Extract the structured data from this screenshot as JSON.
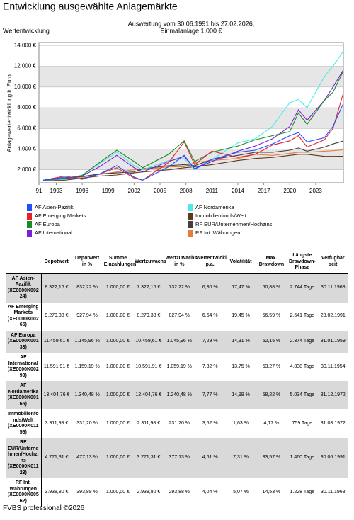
{
  "chart_data": {
    "type": "line",
    "title": "Entwicklung ausgewählte Anlagemärkte",
    "subtitle": [
      "Auswertung vom 30.06.1991 bis 27.02.2026,",
      "Einmalanlage 1.000 €"
    ],
    "panel_label": "Wertentwicklung",
    "y_label": "Anlagewertentwicklung in Euro",
    "x": [
      1991.5,
      1994,
      1996,
      1998,
      2000,
      2002,
      2003,
      2006,
      2007.8,
      2009,
      2011,
      2014,
      2016,
      2018,
      2020,
      2021,
      2022,
      2024,
      2025,
      2026.15
    ],
    "xlim": [
      1991,
      2026.2
    ],
    "xticks": [
      {
        "value": 1991,
        "label": "91"
      },
      1993,
      1996,
      1999,
      2002,
      2005,
      2008,
      2011,
      2014,
      2017,
      2020,
      2023
    ],
    "ylim": [
      750,
      14300
    ],
    "yticks": [
      {
        "value": 2000,
        "label": "2.000 €"
      },
      {
        "value": 4000,
        "label": "4.000 €"
      },
      {
        "value": 6000,
        "label": "6.000 €"
      },
      {
        "value": 8000,
        "label": "8.000 €"
      },
      {
        "value": 10000,
        "label": "10.000 €"
      },
      {
        "value": 12000,
        "label": "12.000 €"
      },
      {
        "value": 14000,
        "label": "14.000 €"
      }
    ],
    "grid": true,
    "series": [
      {
        "name": "AF Asien-Pazifik",
        "color": "#1f4fff",
        "values": [
          1000,
          1300,
          1100,
          1600,
          2400,
          1300,
          1000,
          2300,
          3400,
          2100,
          3000,
          3700,
          3900,
          4500,
          5300,
          5600,
          4700,
          5100,
          6200,
          8322
        ]
      },
      {
        "name": "AF Emerging Markets",
        "color": "#e8202a",
        "values": [
          1000,
          1400,
          1100,
          1600,
          2200,
          1200,
          1000,
          2700,
          4700,
          2500,
          3800,
          3200,
          3500,
          4400,
          4800,
          5300,
          4200,
          4900,
          6000,
          9279
        ]
      },
      {
        "name": "AF Europa",
        "color": "#1a8a2a",
        "values": [
          1000,
          1200,
          1450,
          2700,
          3900,
          2800,
          2200,
          3500,
          4800,
          2800,
          3700,
          4300,
          4900,
          5300,
          5700,
          7500,
          6400,
          8700,
          9500,
          11460
        ]
      },
      {
        "name": "AF International",
        "color": "#7a1fd6",
        "values": [
          1000,
          1150,
          1400,
          2300,
          3400,
          2200,
          1800,
          2800,
          3300,
          2100,
          2800,
          3800,
          4300,
          5000,
          6200,
          7800,
          6800,
          8700,
          10000,
          11592
        ]
      },
      {
        "name": "AF Nordamerika",
        "color": "#4de8e8",
        "values": [
          1000,
          1100,
          1500,
          2600,
          3700,
          2400,
          2000,
          2900,
          3100,
          2000,
          3000,
          4600,
          5000,
          6200,
          8500,
          8800,
          8000,
          11000,
          12000,
          13405
        ]
      },
      {
        "name": "Immobilienfonds/Welt",
        "color": "#5c3a1a",
        "values": [
          1000,
          1000,
          1200,
          1400,
          1500,
          1700,
          1800,
          2000,
          2200,
          2300,
          2500,
          2900,
          3100,
          3200,
          3400,
          3500,
          3500,
          3300,
          3300,
          3312
        ]
      },
      {
        "name": "RF EUR/Unternehmen/Hochzins",
        "color": "#404040",
        "values": [
          1000,
          1200,
          1350,
          1600,
          1700,
          1800,
          2100,
          2400,
          2500,
          2400,
          3000,
          3400,
          3700,
          3700,
          3900,
          4100,
          3800,
          4200,
          4500,
          4771
        ]
      },
      {
        "name": "RF Int. Währungen",
        "color": "#e87a3c",
        "values": [
          1000,
          1150,
          1300,
          1550,
          1800,
          2000,
          2000,
          2300,
          2300,
          2700,
          2900,
          3100,
          3500,
          3400,
          3600,
          3700,
          3700,
          3800,
          3850,
          3939
        ]
      }
    ]
  },
  "table": {
    "header": [
      "Depotwert",
      "Depotwert in %",
      "Summe Einzahlungen",
      "Wertzuwachs",
      "Wertzuwachs in %",
      "Wertentwickl. p.a.",
      "Volatilität",
      "Max. Drawdown",
      "Längste Drawdown-Phase",
      "Verfügbar seit"
    ],
    "rows": [
      [
        "AF Asien-Pazifik (XE0000K00224)",
        "8.322,16 €",
        "832,22 %",
        "1.000,00 €",
        "7.322,16 €",
        "732,22 %",
        "6,30 %",
        "17,47 %",
        "60,88 %",
        "2.744 Tage",
        "30.11.1968"
      ],
      [
        "AF Emerging Markets (XE0000K00265)",
        "9.279,38 €",
        "927,94 %",
        "1.000,00 €",
        "8.279,38 €",
        "827,94 %",
        "6,64 %",
        "19,45 %",
        "56,59 %",
        "2.641 Tage",
        "28.02.1991"
      ],
      [
        "AF Europa (XE0000K00133)",
        "11.459,61 €",
        "1.145,96 %",
        "1.000,00 €",
        "10.459,61 €",
        "1.045,96 %",
        "7,29 %",
        "14,31 %",
        "52,15 %",
        "2.374 Tage",
        "31.01.1959"
      ],
      [
        "AF International (XE0000K00299)",
        "11.591,91 €",
        "1.159,19 %",
        "1.000,00 €",
        "10.591,91 €",
        "1.059,19 %",
        "7,32 %",
        "13,75 %",
        "53,27 %",
        "4.838 Tage",
        "30.11.1954"
      ],
      [
        "AF Nordamerika (XE0000K00165)",
        "13.404,76 €",
        "1.340,48 %",
        "1.000,00 €",
        "12.404,76 €",
        "1.240,48 %",
        "7,77 %",
        "14,99 %",
        "58,22 %",
        "5.034 Tage",
        "31.12.1972"
      ],
      [
        "Immobilienfonds/Welt (XE0000K01156)",
        "3.311,98 €",
        "331,20 %",
        "1.000,00 €",
        "2.311,98 €",
        "231,20 %",
        "3,52 %",
        "1,63 %",
        "4,17 %",
        "759 Tage",
        "31.03.1972"
      ],
      [
        "RF EUR/Unternehmen/Hochzins (XE0000K01123)",
        "4.771,31 €",
        "477,13 %",
        "1.000,00 €",
        "3.771,31 €",
        "377,13 %",
        "4,61 %",
        "7,31 %",
        "33,57 %",
        "1.460 Tage",
        "30.06.1991"
      ],
      [
        "RF Int. Währungen (XE0000K00562)",
        "3.938,80 €",
        "393,88 %",
        "1.000,00 €",
        "2.938,80 €",
        "293,88 %",
        "4,04 %",
        "5,07 %",
        "14,53 %",
        "1.228 Tage",
        "30.11.1968"
      ]
    ]
  },
  "footer": "FVBS professional ©2026"
}
